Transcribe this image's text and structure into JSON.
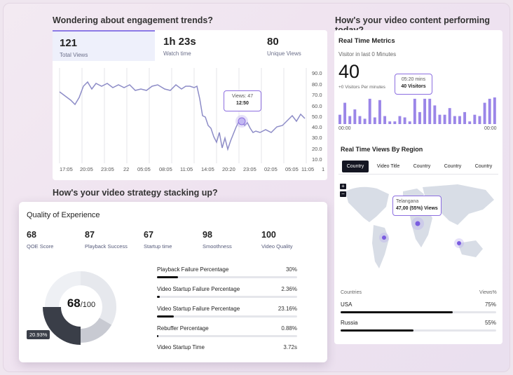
{
  "engagement": {
    "heading": "Wondering about engagement trends?",
    "stats": [
      {
        "value": "121",
        "label": "Total Views"
      },
      {
        "value": "1h 23s",
        "label": "Watch time"
      },
      {
        "value": "80",
        "label": "Unique Views"
      }
    ],
    "y_ticks": [
      "90.0",
      "80.0",
      "70.0",
      "60.0",
      "50.0",
      "40.0",
      "30.0",
      "20.0",
      "10.0"
    ],
    "x_ticks": [
      "17:05",
      "20:05",
      "23:05",
      "22",
      "05:05",
      "08:05",
      "11:05",
      "14:05",
      "20:20",
      "23:05",
      "02:05",
      "05:05",
      "11:05",
      "1"
    ],
    "tooltip": {
      "title": "Views: 47",
      "value": "12:50"
    }
  },
  "strategy_heading": "How's your video strategy stacking up?",
  "qoe": {
    "title": "Quality of Experience",
    "metrics": [
      {
        "value": "68",
        "label": "QOE Score"
      },
      {
        "value": "87",
        "label": "Playback Success"
      },
      {
        "value": "67",
        "label": "Startup time"
      },
      {
        "value": "98",
        "label": "Smoothness"
      },
      {
        "value": "100",
        "label": "Video Quality"
      }
    ],
    "donut": {
      "score": "68",
      "suffix": "/100",
      "badge": "20.93%"
    },
    "bars": [
      {
        "label": "Playback Failure Percentage",
        "pct": "30%",
        "fill": 0.15
      },
      {
        "label": "Video Startup Failure Percentage",
        "pct": "2.36%",
        "fill": 0.02
      },
      {
        "label": "Video Startup Failure Percentage",
        "pct": "23.16%",
        "fill": 0.12
      },
      {
        "label": "Rebuffer Percentage",
        "pct": "0.88%",
        "fill": 0.01
      },
      {
        "label": "Video Startup Time",
        "pct": "3.72s",
        "fill": 0
      }
    ]
  },
  "video_perf": {
    "heading": "How's your video content performing today?",
    "realtime_title": "Real Time Metrics",
    "visitor_label": "Visitor in last 0 Minutes",
    "visitor_count": "40",
    "per_minute": "+0 Visitors Per minutes",
    "tooltip": {
      "time": "05:20 mins",
      "visitors": "40 Visitors"
    },
    "time_start": "00:00",
    "time_end": "00:00",
    "bars": [
      0.35,
      0.8,
      0.3,
      0.55,
      0.3,
      0.2,
      0.95,
      0.25,
      0.9,
      0.3,
      0.1,
      0.1,
      0.3,
      0.25,
      0.1,
      0.95,
      0.45,
      0.95,
      0.95,
      0.7,
      0.35,
      0.35,
      0.6,
      0.3,
      0.3,
      0.45,
      0.1,
      0.35,
      0.3,
      0.8,
      0.95,
      1.0
    ],
    "region_title": "Real Time Views By Region",
    "region_tabs": [
      "Country",
      "Video Title",
      "Country",
      "Country",
      "Country"
    ],
    "map_tag": {
      "place": "Telangana",
      "value": "47,00 (55%) Views"
    },
    "zoom_in": "+",
    "zoom_out": "−",
    "countries_header": "Countries",
    "views_header": "Views%",
    "countries": [
      {
        "name": "USA",
        "pct": "75%",
        "fill": 0.72
      },
      {
        "name": "Russia",
        "pct": "55%",
        "fill": 0.47
      }
    ]
  },
  "colors": {
    "accent": "#8c6ee0",
    "bar": "#9b86e8",
    "dark": "#2f333d"
  }
}
